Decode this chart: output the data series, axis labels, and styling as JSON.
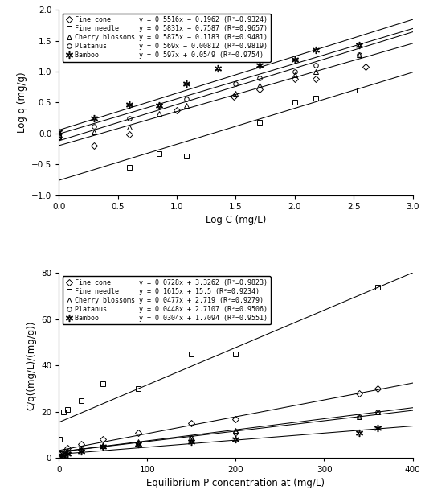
{
  "plot1": {
    "xlabel": "Log C (mg/L)",
    "ylabel": "Log q (mg/g)",
    "xlim": [
      0,
      3
    ],
    "ylim": [
      -1,
      2
    ],
    "xticks": [
      0,
      0.5,
      1,
      1.5,
      2,
      2.5,
      3
    ],
    "yticks": [
      -1,
      -0.5,
      0,
      0.5,
      1,
      1.5,
      2
    ],
    "series": [
      {
        "label": "Fine cone",
        "marker": "D",
        "marker_size": 4,
        "slope": 0.5516,
        "intercept": -0.1962,
        "eq_label": "y = 0.5516x − 0.1962 (R²=0.9324)",
        "x_data": [
          0.0,
          0.3,
          0.6,
          1.0,
          1.48,
          1.7,
          2.0,
          2.18,
          2.6
        ],
        "y_data": [
          -0.05,
          -0.2,
          -0.02,
          0.38,
          0.6,
          0.72,
          0.88,
          0.88,
          1.08
        ]
      },
      {
        "label": "Fine needle",
        "marker": "s",
        "marker_size": 4,
        "slope": 0.5831,
        "intercept": -0.7587,
        "eq_label": "y = 0.5831x − 0.7587 (R²=0.9657)",
        "x_data": [
          0.0,
          0.6,
          0.85,
          1.08,
          1.7,
          2.0,
          2.18,
          2.55
        ],
        "y_data": [
          -0.06,
          -0.55,
          -0.33,
          -0.37,
          0.18,
          0.5,
          0.57,
          0.7
        ]
      },
      {
        "label": "Cherry blossoms",
        "marker": "^",
        "marker_size": 4,
        "slope": 0.5875,
        "intercept": -0.1183,
        "eq_label": "y = 0.5875x − 0.1183 (R²=0.9481)",
        "x_data": [
          0.0,
          0.3,
          0.6,
          0.85,
          1.08,
          1.5,
          1.7,
          2.0,
          2.18,
          2.55
        ],
        "y_data": [
          -0.02,
          0.02,
          0.1,
          0.32,
          0.45,
          0.65,
          0.78,
          0.95,
          1.0,
          1.27
        ]
      },
      {
        "label": "Platanus",
        "marker": "o",
        "marker_size": 4,
        "slope": 0.569,
        "intercept": -0.00812,
        "eq_label": "y = 0.569x − 0.00812 (R²=0.9819)",
        "x_data": [
          0.0,
          0.3,
          0.6,
          0.85,
          1.08,
          1.5,
          1.7,
          2.0,
          2.18,
          2.55
        ],
        "y_data": [
          0.0,
          0.12,
          0.25,
          0.45,
          0.56,
          0.8,
          0.9,
          1.0,
          1.1,
          1.28
        ]
      },
      {
        "label": "Bamboo",
        "marker": "$*$",
        "marker_size": 6,
        "slope": 0.597,
        "intercept": 0.0549,
        "eq_label": "y = 0.597x + 0.0549 (R²=0.9754)",
        "x_data": [
          0.0,
          0.3,
          0.6,
          0.85,
          1.08,
          1.35,
          1.7,
          2.0,
          2.18,
          2.55
        ],
        "y_data": [
          0.02,
          0.25,
          0.47,
          0.46,
          0.8,
          1.05,
          1.1,
          1.2,
          1.35,
          1.43
        ]
      }
    ]
  },
  "plot2": {
    "xlabel": "Equilibrium P concentration at (mg/L)",
    "ylabel": "C/q((mg/L)/(mg/g))",
    "xlim": [
      0,
      400
    ],
    "ylim": [
      0,
      80
    ],
    "xticks": [
      0,
      100,
      200,
      300,
      400
    ],
    "yticks": [
      0,
      20,
      40,
      60,
      80
    ],
    "series": [
      {
        "label": "Fine cone",
        "marker": "D",
        "marker_size": 4,
        "slope": 0.0728,
        "intercept": 3.3262,
        "eq_label": "y = 0.0728x + 3.3262 (R²=0.9823)",
        "x_data": [
          1,
          5,
          10,
          25,
          50,
          90,
          150,
          200,
          340,
          360
        ],
        "y_data": [
          1.5,
          2.5,
          4.5,
          6,
          8,
          11,
          15,
          17,
          28,
          30
        ]
      },
      {
        "label": "Fine needle",
        "marker": "s",
        "marker_size": 4,
        "slope": 0.1615,
        "intercept": 15.5,
        "eq_label": "y = 0.1615x + 15.5 (R²=0.9234)",
        "x_data": [
          1,
          5,
          10,
          25,
          50,
          90,
          150,
          200,
          360
        ],
        "y_data": [
          8,
          20,
          21,
          25,
          32,
          30,
          45,
          45,
          74
        ]
      },
      {
        "label": "Cherry blossoms",
        "marker": "^",
        "marker_size": 4,
        "slope": 0.0477,
        "intercept": 2.719,
        "eq_label": "y = 0.0477x + 2.719 (R²=0.9279)",
        "x_data": [
          1,
          5,
          10,
          25,
          50,
          90,
          150,
          200,
          340,
          360
        ],
        "y_data": [
          1,
          2,
          3,
          4,
          5.5,
          7,
          9,
          12,
          18,
          20
        ]
      },
      {
        "label": "Platanus",
        "marker": "o",
        "marker_size": 4,
        "slope": 0.0448,
        "intercept": 2.7107,
        "eq_label": "y = 0.0448x + 2.7107 (R²=0.9506)",
        "x_data": [
          1,
          5,
          10,
          25,
          50,
          90,
          150,
          200,
          340,
          360
        ],
        "y_data": [
          1,
          2,
          3,
          4.5,
          5,
          6.5,
          9,
          11,
          18,
          20
        ]
      },
      {
        "label": "Bamboo",
        "marker": "$*$",
        "marker_size": 6,
        "slope": 0.0304,
        "intercept": 1.7094,
        "eq_label": "y = 0.0304x + 1.7094 (R²=0.9551)",
        "x_data": [
          1,
          5,
          10,
          25,
          50,
          90,
          150,
          200,
          340,
          360
        ],
        "y_data": [
          0.5,
          1,
          2,
          3,
          5,
          6,
          7,
          8,
          11,
          13
        ]
      }
    ]
  },
  "legend_fontsize": 6.0,
  "axis_label_fontsize": 8.5,
  "tick_fontsize": 7.5,
  "fig_width": 5.24,
  "fig_height": 6.19
}
